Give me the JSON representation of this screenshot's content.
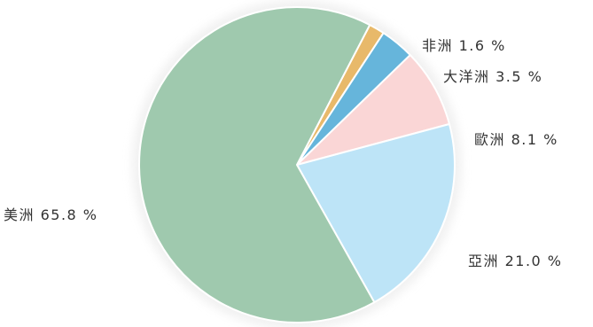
{
  "chart_data": {
    "type": "pie",
    "title": "",
    "slices": [
      {
        "label": "非洲",
        "value": 1.6,
        "display": "非洲 1.6 %",
        "color": "#e8b96a"
      },
      {
        "label": "大洋洲",
        "value": 3.5,
        "display": "大洋洲 3.5 %",
        "color": "#66b5db"
      },
      {
        "label": "歐洲",
        "value": 8.1,
        "display": "歐洲 8.1 %",
        "color": "#fad6d6"
      },
      {
        "label": "亞洲",
        "value": 21.0,
        "display": "亞洲 21.0 %",
        "color": "#bde4f7"
      },
      {
        "label": "美洲",
        "value": 65.8,
        "display": "美洲 65.8 %",
        "color": "#9fc9ae"
      }
    ],
    "legend": "none",
    "labels": "outside"
  }
}
